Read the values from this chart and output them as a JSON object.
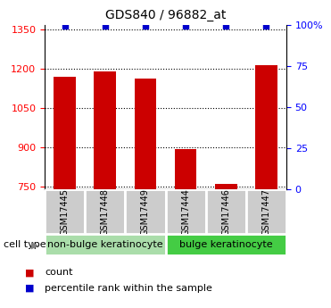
{
  "title": "GDS840 / 96882_at",
  "samples": [
    "GSM17445",
    "GSM17448",
    "GSM17449",
    "GSM17444",
    "GSM17446",
    "GSM17447"
  ],
  "counts": [
    1170,
    1192,
    1163,
    893,
    762,
    1215
  ],
  "percentile_ranks": [
    99,
    99,
    99,
    99,
    99,
    99
  ],
  "ylim_left": [
    740,
    1370
  ],
  "ylim_right": [
    0,
    100
  ],
  "yticks_left": [
    750,
    900,
    1050,
    1200,
    1350
  ],
  "yticks_right": [
    0,
    25,
    50,
    75,
    100
  ],
  "bar_color": "#cc0000",
  "dot_color": "#0000cc",
  "bar_bottom": 740,
  "groups": [
    {
      "label": "non-bulge keratinocyte",
      "indices": [
        0,
        1,
        2
      ],
      "color": "#aaddaa"
    },
    {
      "label": "bulge keratinocyte",
      "indices": [
        3,
        4,
        5
      ],
      "color": "#44cc44"
    }
  ],
  "cell_type_label": "cell type",
  "legend_count_label": "count",
  "legend_percentile_label": "percentile rank within the sample",
  "title_fontsize": 10,
  "tick_fontsize": 8,
  "sample_fontsize": 7,
  "label_fontsize": 8,
  "bar_width": 0.55,
  "label_box_color": "#cccccc",
  "label_box_edgecolor": "#ffffff"
}
